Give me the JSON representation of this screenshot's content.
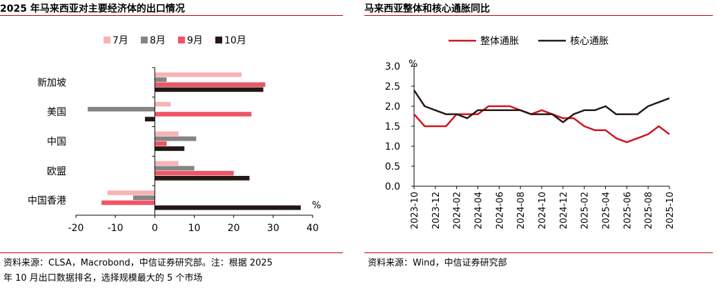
{
  "left": {
    "title": "2025 年马来西亚对主要经济体的出口情况",
    "source_line1": "资料来源：CLSA，Macrobond，中信证券研究部。注：根据 2025",
    "source_line2": "年 10 月出口数据排名，选择规模最大的 5 个市场"
  },
  "right": {
    "title": "马来西亚整体和核心通胀同比",
    "source": "资料来源：Wind，中信证券研究部"
  },
  "chart_data": [
    {
      "type": "bar",
      "orientation": "horizontal",
      "categories": [
        "新加坡",
        "美国",
        "中国",
        "欧盟",
        "中国香港"
      ],
      "series": [
        {
          "name": "7月",
          "color": "#f7b3b5",
          "values": [
            22,
            4,
            6,
            6,
            -12
          ]
        },
        {
          "name": "8月",
          "color": "#858585",
          "values": [
            3,
            -17,
            10.5,
            10,
            -5.5
          ]
        },
        {
          "name": "9月",
          "color": "#ef5565",
          "values": [
            28,
            24.5,
            3,
            20,
            -13.5
          ]
        },
        {
          "name": "10月",
          "color": "#231815",
          "values": [
            27.5,
            -2.5,
            7.5,
            24,
            37
          ]
        }
      ],
      "xlim": [
        -20,
        40
      ],
      "xticks": [
        "-20",
        "-10",
        "0",
        "10",
        "20",
        "30",
        "40"
      ],
      "unit_label": "%",
      "legend": "top"
    },
    {
      "type": "line",
      "x": [
        "2023-10",
        "2023-11",
        "2023-12",
        "2024-01",
        "2024-02",
        "2024-03",
        "2024-04",
        "2024-05",
        "2024-06",
        "2024-07",
        "2024-08",
        "2024-09",
        "2024-10",
        "2024-11",
        "2024-12",
        "2025-01",
        "2025-02",
        "2025-03",
        "2025-04",
        "2025-05",
        "2025-06",
        "2025-07",
        "2025-08",
        "2025-09",
        "2025-10"
      ],
      "xticks": [
        "2023-10",
        "2023-12",
        "2024-02",
        "2024-04",
        "2024-06",
        "2024-08",
        "2024-10",
        "2024-12",
        "2025-02",
        "2025-04",
        "2025-06",
        "2025-08",
        "2025-10"
      ],
      "series": [
        {
          "name": "整体通胀",
          "color": "#d0121b",
          "values": [
            1.8,
            1.5,
            1.5,
            1.5,
            1.8,
            1.8,
            1.8,
            2.0,
            2.0,
            2.0,
            1.9,
            1.8,
            1.9,
            1.8,
            1.7,
            1.7,
            1.5,
            1.4,
            1.4,
            1.2,
            1.1,
            1.2,
            1.3,
            1.5,
            1.3
          ]
        },
        {
          "name": "核心通胀",
          "color": "#231815",
          "values": [
            2.4,
            2.0,
            1.9,
            1.8,
            1.8,
            1.7,
            1.9,
            1.9,
            1.9,
            1.9,
            1.9,
            1.8,
            1.8,
            1.8,
            1.6,
            1.8,
            1.9,
            1.9,
            2.0,
            1.8,
            1.8,
            1.8,
            2.0,
            2.1,
            2.2
          ]
        }
      ],
      "ylim": [
        0.0,
        3.0
      ],
      "yticks": [
        "0.0",
        "0.5",
        "1.0",
        "1.5",
        "2.0",
        "2.5",
        "3.0"
      ],
      "unit_label": "%",
      "legend": "top"
    }
  ]
}
